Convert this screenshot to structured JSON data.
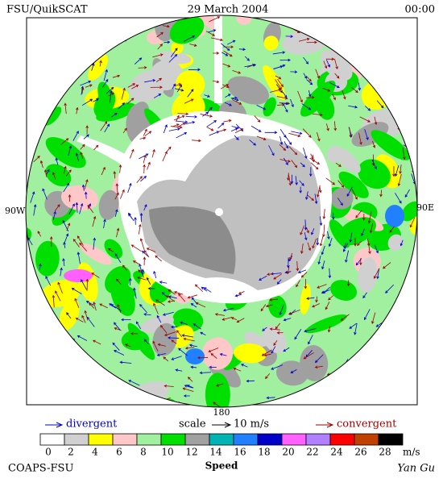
{
  "header": {
    "left": "FSU/QuikSCAT",
    "center": "29 March 2004",
    "right": "00:00"
  },
  "map": {
    "west_label": "90W",
    "east_label": "90E",
    "south_label": "180"
  },
  "legend": {
    "divergent": "divergent",
    "scale": "scale",
    "scale_value": "10 m/s",
    "convergent": "convergent"
  },
  "colorbar": {
    "ticks": [
      0,
      2,
      4,
      6,
      8,
      10,
      12,
      14,
      16,
      18,
      20,
      22,
      24,
      26,
      28
    ],
    "unit": "m/s",
    "label": "Speed",
    "colors": [
      "#ffffff",
      "#d0d0d0",
      "#ffff00",
      "#ffc8c8",
      "#a0f0a0",
      "#00e000",
      "#a0a0a0",
      "#00b4b4",
      "#2080ff",
      "#0000c8",
      "#ff60ff",
      "#b080ff",
      "#ff0000",
      "#c04000",
      "#000000"
    ]
  },
  "footer": {
    "left": "COAPS-FSU",
    "right": "Yan Gu"
  }
}
